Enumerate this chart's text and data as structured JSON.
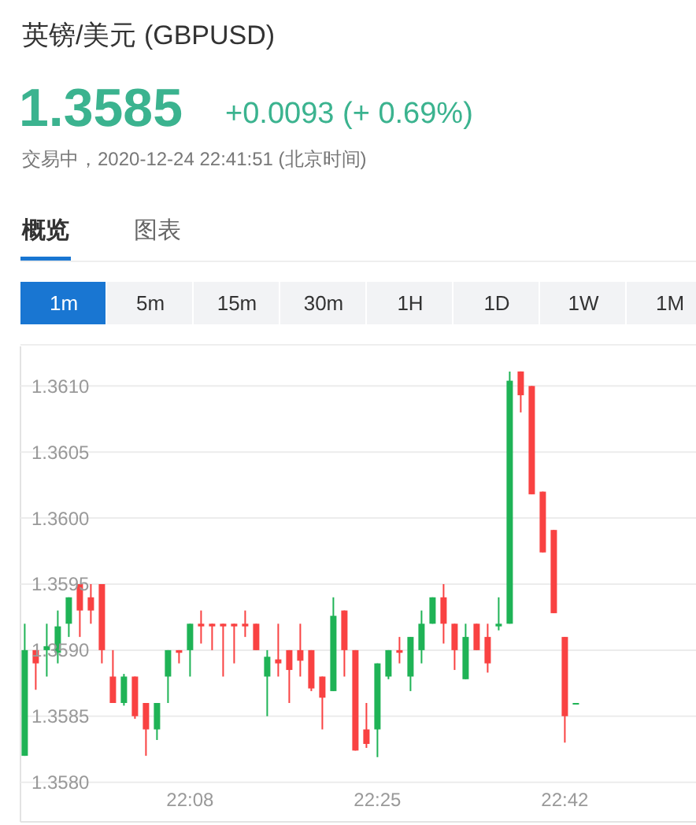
{
  "chart_data": {
    "type": "candlestick",
    "title": "英镑/美元  (GBPUSD)",
    "subtitle": "1.3585",
    "annotations": [
      "+0.0093 (+ 0.69%)",
      "交易中，2020-12-24 22:41:51 (北京时间)",
      "概览",
      "图表",
      "1m",
      "5m",
      "15m",
      "30m",
      "1H",
      "1D",
      "1W",
      "1M"
    ],
    "categories": [
      null,
      null,
      null,
      null,
      null,
      null,
      null,
      null,
      null,
      null,
      null,
      null,
      null,
      null,
      null,
      "22:08",
      null,
      null,
      null,
      null,
      null,
      null,
      null,
      null,
      null,
      null,
      null,
      null,
      null,
      null,
      null,
      null,
      "22:25",
      null,
      null,
      null,
      null,
      null,
      null,
      null,
      null,
      null,
      null,
      null,
      null,
      null,
      null,
      null,
      null,
      "22:42",
      null
    ],
    "ohlc": [
      [
        1.3582,
        1.3592,
        1.3582,
        1.359
      ],
      [
        1.359,
        1.359,
        1.3587,
        1.3589
      ],
      [
        1.359,
        1.3592,
        1.3588,
        1.35903
      ],
      [
        1.35898,
        1.3593,
        1.3589,
        1.35918
      ],
      [
        1.3592,
        1.3594,
        1.3591,
        1.3594
      ],
      [
        1.3595,
        1.3595,
        1.3591,
        1.3593
      ],
      [
        1.3594,
        1.3595,
        1.3592,
        1.3593
      ],
      [
        1.3595,
        1.3595,
        1.3589,
        1.359
      ],
      [
        1.3588,
        1.359,
        1.3586,
        1.3586
      ],
      [
        1.3586,
        1.35882,
        1.35858,
        1.3588
      ],
      [
        1.3588,
        1.3588,
        1.35848,
        1.3585
      ],
      [
        1.3586,
        1.3586,
        1.3582,
        1.3584
      ],
      [
        1.3584,
        1.3586,
        1.35832,
        1.3586
      ],
      [
        1.3588,
        1.359,
        1.3586,
        1.359
      ],
      [
        1.359,
        1.359,
        1.3589,
        1.35898
      ],
      [
        1.359,
        1.3592,
        1.3588,
        1.3592
      ],
      [
        1.3592,
        1.3593,
        1.35905,
        1.35918
      ],
      [
        1.3592,
        1.3592,
        1.359,
        1.35918
      ],
      [
        1.3592,
        1.3592,
        1.3588,
        1.35918
      ],
      [
        1.3592,
        1.3592,
        1.3589,
        1.35918
      ],
      [
        1.3592,
        1.3593,
        1.3591,
        1.35918
      ],
      [
        1.3592,
        1.3592,
        1.359,
        1.359
      ],
      [
        1.3588,
        1.359,
        1.3585,
        1.35895
      ],
      [
        1.35893,
        1.3592,
        1.3588,
        1.3589
      ],
      [
        1.359,
        1.359,
        1.3586,
        1.35885
      ],
      [
        1.359,
        1.3592,
        1.3588,
        1.35892
      ],
      [
        1.359,
        1.359,
        1.35869,
        1.35871
      ],
      [
        1.3588,
        1.3588,
        1.3584,
        1.35864
      ],
      [
        1.35869,
        1.3594,
        1.35869,
        1.35926
      ],
      [
        1.3593,
        1.3593,
        1.3588,
        1.359
      ],
      [
        1.359,
        1.359,
        1.35824,
        1.35824
      ],
      [
        1.3584,
        1.3586,
        1.35826,
        1.35829
      ],
      [
        1.3584,
        1.3589,
        1.35819,
        1.3589
      ],
      [
        1.3588,
        1.359,
        1.35878,
        1.359
      ],
      [
        1.359,
        1.3591,
        1.3589,
        1.35898
      ],
      [
        1.3588,
        1.3591,
        1.35869,
        1.3591
      ],
      [
        1.359,
        1.3593,
        1.3589,
        1.3592
      ],
      [
        1.3592,
        1.3594,
        1.3592,
        1.3594
      ],
      [
        1.3594,
        1.3595,
        1.35905,
        1.3592
      ],
      [
        1.3592,
        1.3592,
        1.35885,
        1.359
      ],
      [
        1.35878,
        1.3592,
        1.35878,
        1.3591
      ],
      [
        1.3592,
        1.3592,
        1.359,
        1.359
      ],
      [
        1.3591,
        1.3592,
        1.35883,
        1.3589
      ],
      [
        1.35918,
        1.3594,
        1.35915,
        1.3592
      ],
      [
        1.3592,
        1.36111,
        1.3592,
        1.36104
      ],
      [
        1.36111,
        1.36111,
        1.3608,
        1.36093
      ],
      [
        1.361,
        1.361,
        1.36018,
        1.36018
      ],
      [
        1.3602,
        1.3602,
        1.35974,
        1.35974
      ],
      [
        1.35991,
        1.35991,
        1.35928,
        1.35928
      ],
      [
        1.3591,
        1.3591,
        1.3583,
        1.3585
      ],
      [
        1.3586,
        1.3586,
        1.3586,
        1.3586
      ]
    ],
    "colors": [
      "#1fb356",
      "#f94242",
      "#1fb356",
      "#1fb356",
      "#1fb356",
      "#f94242",
      "#f94242",
      "#f94242",
      "#f94242",
      "#1fb356",
      "#f94242",
      "#f94242",
      "#1fb356",
      "#1fb356",
      "#f94242",
      "#1fb356",
      "#f94242",
      "#f94242",
      "#f94242",
      "#f94242",
      "#f94242",
      "#f94242",
      "#1fb356",
      "#f94242",
      "#f94242",
      "#f94242",
      "#f94242",
      "#f94242",
      "#1fb356",
      "#f94242",
      "#f94242",
      "#f94242",
      "#1fb356",
      "#1fb356",
      "#f94242",
      "#1fb356",
      "#1fb356",
      "#1fb356",
      "#f94242",
      "#f94242",
      "#1fb356",
      "#f94242",
      "#f94242",
      "#1fb356",
      "#1fb356",
      "#f94242",
      "#f94242",
      "#f94242",
      "#f94242",
      "#f94242",
      "#1fb356"
    ],
    "ylim": [
      1.3577,
      1.3613
    ],
    "yticks": [
      {
        "value": 1.358,
        "label": "1.3580"
      },
      {
        "value": 1.3585,
        "label": "1.3585"
      },
      {
        "value": 1.359,
        "label": "1.3590"
      },
      {
        "value": 1.3595,
        "label": "1.3595"
      },
      {
        "value": 1.36,
        "label": "1.3600"
      },
      {
        "value": 1.3605,
        "label": "1.3605"
      },
      {
        "value": 1.361,
        "label": "1.3610"
      }
    ],
    "grid": "y"
  }
}
